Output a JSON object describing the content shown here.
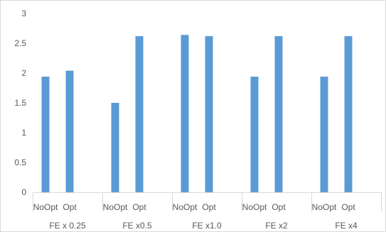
{
  "chart_data": {
    "type": "bar",
    "groups": [
      {
        "label": "FE x 0.25",
        "bars": [
          {
            "label": "NoOpt",
            "value": 1.94
          },
          {
            "label": "Opt",
            "value": 2.04
          }
        ]
      },
      {
        "label": "FE x0.5",
        "bars": [
          {
            "label": "NoOpt",
            "value": 1.5
          },
          {
            "label": "Opt",
            "value": 2.62
          }
        ]
      },
      {
        "label": "FE x1.0",
        "bars": [
          {
            "label": "NoOpt",
            "value": 2.64
          },
          {
            "label": "Opt",
            "value": 2.62
          }
        ]
      },
      {
        "label": "FE x2",
        "bars": [
          {
            "label": "NoOpt",
            "value": 1.94
          },
          {
            "label": "Opt",
            "value": 2.62
          }
        ]
      },
      {
        "label": "FE x4",
        "bars": [
          {
            "label": "NoOpt",
            "value": 1.94
          },
          {
            "label": "Opt",
            "value": 2.62
          }
        ]
      }
    ],
    "y_ticks": [
      "0",
      "0.5",
      "1",
      "1.5",
      "2",
      "2.5",
      "3"
    ],
    "ylim": [
      0,
      3
    ],
    "grid": false,
    "bar_color": "#5b9bd5",
    "axis_color": "#d9d9d9",
    "text_color": "#595959"
  }
}
